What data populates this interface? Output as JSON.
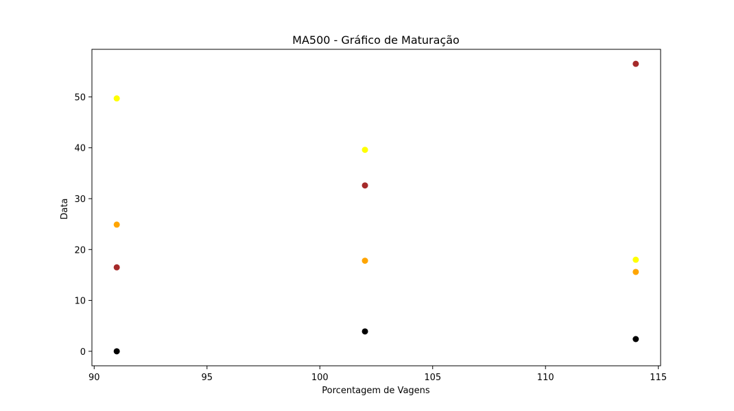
{
  "chart_data": {
    "type": "scatter",
    "title": "MA500 - Gráfico de Maturação",
    "xlabel": "Porcentagem de Vagens",
    "ylabel": "Data",
    "xlim": [
      89.9,
      115.1
    ],
    "ylim": [
      -2.85,
      59.35
    ],
    "xticks": [
      90,
      95,
      100,
      105,
      110,
      115
    ],
    "yticks": [
      0,
      10,
      20,
      30,
      40,
      50
    ],
    "grid": false,
    "legend": "none",
    "points": [
      {
        "x": 91,
        "y": 0,
        "color": "#000000"
      },
      {
        "x": 91,
        "y": 16.5,
        "color": "#a52a2a"
      },
      {
        "x": 91,
        "y": 24.9,
        "color": "#ffa500"
      },
      {
        "x": 91,
        "y": 49.7,
        "color": "#ffff00"
      },
      {
        "x": 102,
        "y": 3.9,
        "color": "#000000"
      },
      {
        "x": 102,
        "y": 17.8,
        "color": "#ffa500"
      },
      {
        "x": 102,
        "y": 32.6,
        "color": "#a52a2a"
      },
      {
        "x": 102,
        "y": 39.6,
        "color": "#ffff00"
      },
      {
        "x": 114,
        "y": 2.4,
        "color": "#000000"
      },
      {
        "x": 114,
        "y": 15.6,
        "color": "#ffa500"
      },
      {
        "x": 114,
        "y": 18.0,
        "color": "#ffff00"
      },
      {
        "x": 114,
        "y": 56.5,
        "color": "#a52a2a"
      }
    ]
  }
}
